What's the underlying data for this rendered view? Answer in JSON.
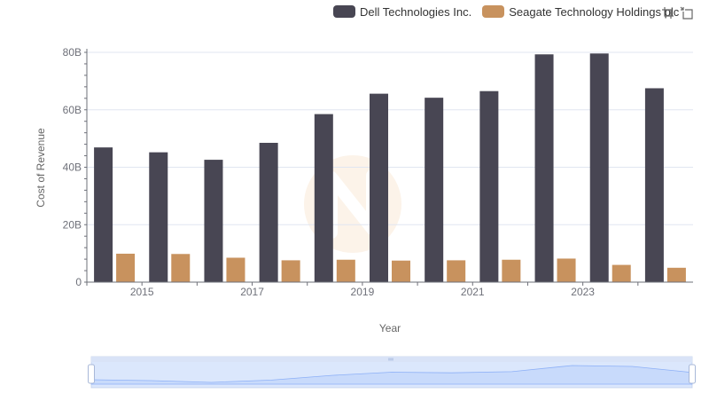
{
  "colors": {
    "dell": "#484653",
    "seagate": "#c8925e",
    "axis": "#6e7079",
    "grid": "#e0e6f1",
    "zoom_fill": "#d7e3fc",
    "zoom_line": "#8fb0f7"
  },
  "legend": [
    {
      "name": "Dell Technologies Inc.",
      "color": "#484653"
    },
    {
      "name": "Seagate Technology Holdings plc",
      "color": "#c8925e"
    }
  ],
  "toolbox": {
    "icons": [
      "zoom-area-icon",
      "zoom-reset-icon"
    ]
  },
  "watermark": {
    "icon": "logo-watermark-icon"
  },
  "chart_data": {
    "type": "bar",
    "xlabel": "Year",
    "ylabel": "Cost of Revenue",
    "categories": [
      "2014",
      "2015",
      "2016",
      "2017",
      "2018",
      "2019",
      "2020",
      "2021",
      "2022",
      "2023",
      "2024"
    ],
    "x_tick_labels": [
      "2015",
      "2017",
      "2019",
      "2021",
      "2023"
    ],
    "y_tick_labels": [
      "0",
      "20B",
      "40B",
      "60B",
      "80B"
    ],
    "ylim": [
      0,
      80000000000
    ],
    "grid": true,
    "legend_position": "top-right",
    "series": [
      {
        "name": "Dell Technologies Inc.",
        "values": [
          46900000000,
          45200000000,
          42600000000,
          48500000000,
          58500000000,
          65600000000,
          64200000000,
          66500000000,
          79300000000,
          79600000000,
          67500000000
        ]
      },
      {
        "name": "Seagate Technology Holdings plc",
        "values": [
          9900000000,
          9800000000,
          8500000000,
          7600000000,
          7800000000,
          7500000000,
          7600000000,
          7800000000,
          8200000000,
          6000000000,
          5000000000
        ]
      }
    ]
  }
}
